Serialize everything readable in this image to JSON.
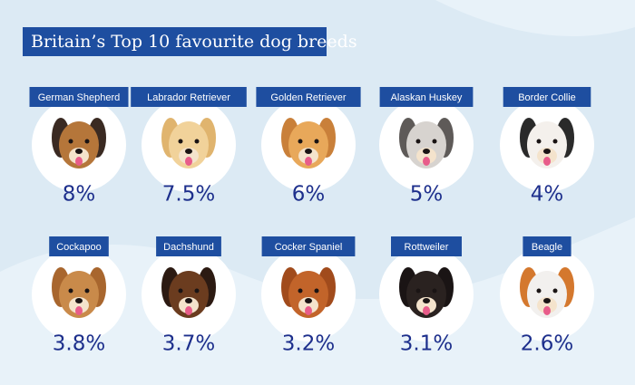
{
  "title": "Britain’s Top 10 favourite dog breeds",
  "breeds": [
    {
      "name": "German Shepherd",
      "share": "8%"
    },
    {
      "name": "Labrador Retriever",
      "share": "7.5%"
    },
    {
      "name": "Golden Retriever",
      "share": "6%"
    },
    {
      "name": "Alaskan Huskey",
      "share": "5%"
    },
    {
      "name": "Border Collie",
      "share": "4%"
    },
    {
      "name": "Cockapoo",
      "share": "3.8%"
    },
    {
      "name": "Dachshund",
      "share": "3.7%"
    },
    {
      "name": "Cocker Spaniel",
      "share": "3.2%"
    },
    {
      "name": "Rottweiler",
      "share": "3.1%"
    },
    {
      "name": "Beagle",
      "share": "2.6%"
    }
  ]
}
